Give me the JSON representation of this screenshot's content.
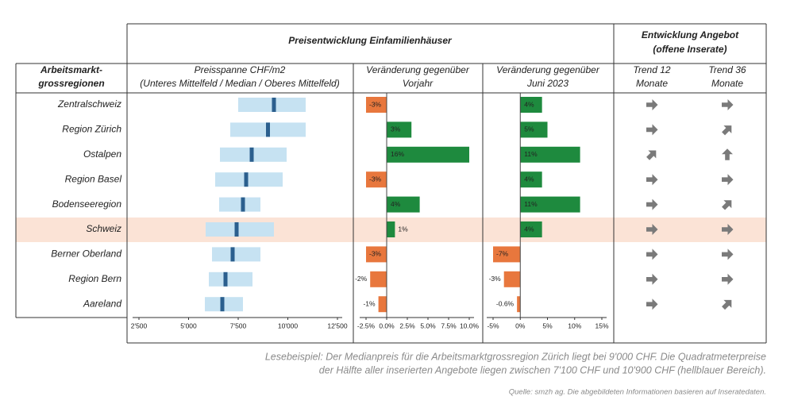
{
  "header": {
    "group_price": "Preisentwicklung Einfamilienhäuser",
    "group_supply": [
      "Entwicklung Angebot",
      "(offene Inserate)"
    ],
    "col_region": [
      "Arbeitsmarkt-",
      "grossregionen"
    ],
    "col_price": [
      "Preisspanne CHF/m2",
      "(Unteres Mittelfeld / Median / Oberes Mittelfeld)"
    ],
    "col_yoy": [
      "Veränderung gegenüber",
      "Vorjahr"
    ],
    "col_jun": [
      "Veränderung gegenüber",
      "Juni 2023"
    ],
    "col_trend12": [
      "Trend 12",
      "Monate"
    ],
    "col_trend36": [
      "Trend 36",
      "Monate"
    ]
  },
  "chart_data": [
    {
      "type": "range",
      "categories": [
        "Zentralschweiz",
        "Region Zürich",
        "Ostalpen",
        "Region Basel",
        "Bodenseeregion",
        "Schweiz",
        "Berner Oberland",
        "Region Bern",
        "Aareland"
      ],
      "low": [
        7500,
        7100,
        6580,
        6340,
        6540,
        5860,
        6180,
        6020,
        5820
      ],
      "median": [
        9300,
        9000,
        8180,
        7900,
        7740,
        7420,
        7220,
        6860,
        6700
      ],
      "high": [
        10900,
        10900,
        9940,
        9740,
        8620,
        9300,
        8620,
        8220,
        7740
      ],
      "range_color": "#c6e2f2",
      "median_color": "#2b5f8e",
      "xlim": [
        2500,
        12500
      ],
      "xticks": [
        {
          "value": 2500,
          "label": "2'500"
        },
        {
          "value": 5000,
          "label": "5'000"
        },
        {
          "value": 7500,
          "label": "7'500"
        },
        {
          "value": 10000,
          "label": "10'000"
        },
        {
          "value": 12500,
          "label": "12'500"
        }
      ]
    },
    {
      "type": "bar",
      "values": [
        -3,
        3,
        16,
        -3,
        4,
        1,
        -3,
        -2,
        -1
      ],
      "value_labels": [
        "-3%",
        "3%",
        "16%",
        "-3%",
        "4%",
        "1%",
        "-3%",
        "-2%",
        "-1%"
      ],
      "positive_color": "#1e8a3e",
      "negative_color": "#e8773d",
      "xlim": [
        -2.5,
        10
      ],
      "xticks": [
        {
          "value": -2.5,
          "label": "-2.5%"
        },
        {
          "value": 0,
          "label": "0.0%"
        },
        {
          "value": 2.5,
          "label": "2.5%"
        },
        {
          "value": 5,
          "label": "5.0%"
        },
        {
          "value": 7.5,
          "label": "7.5%"
        },
        {
          "value": 10,
          "label": "10.0%"
        }
      ]
    },
    {
      "type": "bar",
      "values": [
        4,
        5,
        11,
        4,
        11,
        4,
        -7,
        -3,
        -0.6
      ],
      "value_labels": [
        "4%",
        "5%",
        "11%",
        "4%",
        "11%",
        "4%",
        "-7%",
        "-3%",
        "-0.6%"
      ],
      "positive_color": "#1e8a3e",
      "negative_color": "#e8773d",
      "xlim": [
        -5,
        15
      ],
      "xticks": [
        {
          "value": -5,
          "label": "-5%"
        },
        {
          "value": 0,
          "label": "0%"
        },
        {
          "value": 5,
          "label": "5%"
        },
        {
          "value": 10,
          "label": "10%"
        },
        {
          "value": 15,
          "label": "15%"
        }
      ]
    }
  ],
  "trends": {
    "trend_12": [
      0,
      0,
      45,
      0,
      0,
      0,
      0,
      0,
      0
    ],
    "trend_36": [
      0,
      45,
      90,
      0,
      45,
      0,
      0,
      0,
      45
    ],
    "color": "#7a7a7a"
  },
  "footer": {
    "reading_example": [
      "Lesebeispiel: Der Medianpreis für die Arbeitsmarktgrossregion Zürich liegt bei 9'000 CHF. Die Quadratmeterpreise",
      "der Hälfte aller inserierten Angebote liegen zwischen 7'100 CHF und 10'900 CHF (hellblauer Bereich)."
    ],
    "source": "Quelle: smzh ag. Die abgebildeten Informationen basieren auf Inseratedaten."
  }
}
